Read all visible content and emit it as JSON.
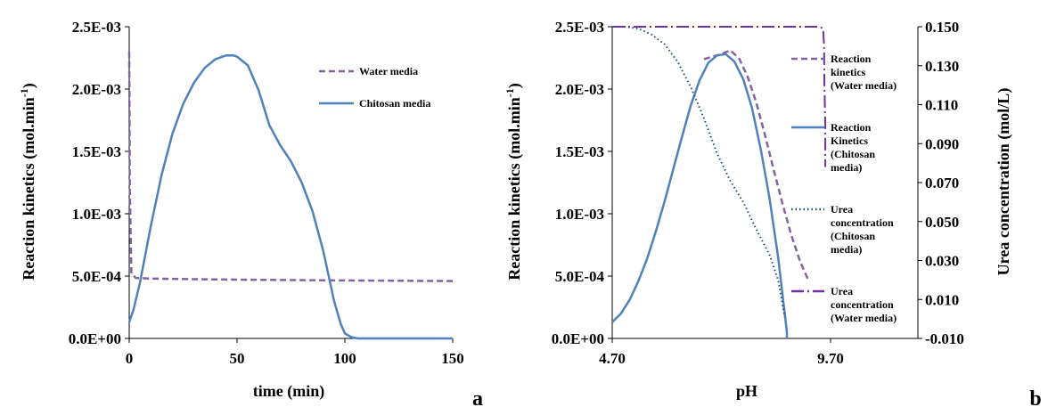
{
  "colors": {
    "water": "#8064A2",
    "chitosan": "#4F81BD",
    "urea_chitosan": "#1F4E79",
    "urea_water": "#7030A0"
  },
  "chart_data": [
    {
      "type": "line",
      "panel_label": "a",
      "xlabel": "time (min)",
      "ylabel": "Reaction kinetics (mol.min",
      "ylabel_sup": "-1",
      "ylabel_end": ")",
      "xlim": [
        0,
        150
      ],
      "ylim": [
        0,
        0.0025
      ],
      "xticks": [
        "0",
        "50",
        "100",
        "150"
      ],
      "xtick_values": [
        0,
        50,
        100,
        150
      ],
      "yticks": [
        "0.0E+00",
        "5.0E-04",
        "1.0E-03",
        "1.5E-03",
        "2.0E-03",
        "2.5E-03"
      ],
      "ytick_values": [
        0,
        0.0005,
        0.001,
        0.0015,
        0.002,
        0.0025
      ],
      "legend_position": "top-right",
      "series": [
        {
          "name": "Water media",
          "style": "dashed",
          "x": [
            0,
            0.3,
            1,
            3,
            10,
            30,
            60,
            100,
            150
          ],
          "y": [
            0.0023,
            0.0012,
            0.00052,
            0.000485,
            0.00048,
            0.000475,
            0.00047,
            0.000465,
            0.00046
          ]
        },
        {
          "name": "Chitosan media",
          "style": "solid",
          "x": [
            0,
            2,
            5,
            10,
            15,
            20,
            25,
            30,
            35,
            40,
            45,
            48,
            50,
            55,
            60,
            65,
            70,
            75,
            80,
            85,
            90,
            95,
            98,
            100,
            103,
            106,
            110,
            120,
            130,
            150
          ],
          "y": [
            0.00013,
            0.00023,
            0.00045,
            0.0009,
            0.00131,
            0.00164,
            0.00188,
            0.00205,
            0.00217,
            0.00224,
            0.00227,
            0.00227,
            0.00226,
            0.00219,
            0.00199,
            0.00171,
            0.00155,
            0.00142,
            0.00125,
            0.00102,
            0.0007,
            0.0003,
            0.00012,
            4e-05,
            1e-05,
            0,
            0,
            0,
            0,
            0
          ]
        }
      ]
    },
    {
      "type": "line",
      "panel_label": "b",
      "xlabel": "pH",
      "ylabel": "Reaction kinetics (mol.min",
      "ylabel_sup": "-1",
      "ylabel_end": ")",
      "y2label": "Urea concentration (mol/L)",
      "xlim": [
        4.7,
        11.7
      ],
      "ylim": [
        0,
        0.0025
      ],
      "y2lim": [
        -0.01,
        0.15
      ],
      "xticks": [
        "4.70",
        "9.70"
      ],
      "xtick_values": [
        4.7,
        9.7
      ],
      "yticks": [
        "0.0E+00",
        "5.0E-04",
        "1.0E-03",
        "1.5E-03",
        "2.0E-03",
        "2.5E-03"
      ],
      "ytick_values": [
        0,
        0.0005,
        0.001,
        0.0015,
        0.002,
        0.0025
      ],
      "y2ticks": [
        "-0.010",
        "0.010",
        "0.030",
        "0.050",
        "0.070",
        "0.090",
        "0.110",
        "0.130",
        "0.150"
      ],
      "y2tick_values": [
        -0.01,
        0.01,
        0.03,
        0.05,
        0.07,
        0.09,
        0.11,
        0.13,
        0.15
      ],
      "legend_position": "right",
      "series": [
        {
          "name": "Reaction kinetics (Water media)",
          "legend_lines": [
            "Reaction",
            "kinetics",
            "(Water media)"
          ],
          "axis": "left",
          "style": "dashed",
          "x": [
            6.8,
            7.0,
            7.2,
            7.4,
            7.6,
            7.8,
            8.0,
            8.2,
            8.4,
            8.6,
            8.8,
            9.0,
            9.2
          ],
          "y": [
            0.00224,
            0.00226,
            0.00228,
            0.00231,
            0.00225,
            0.0021,
            0.00189,
            0.00163,
            0.00135,
            0.00108,
            0.00083,
            0.00062,
            0.00046
          ]
        },
        {
          "name": "Reaction Kinetics (Chitosan media)",
          "legend_lines": [
            "Reaction",
            "Kinetics",
            "(Chitosan",
            "media)"
          ],
          "axis": "left",
          "style": "solid",
          "x": [
            4.7,
            4.9,
            5.1,
            5.3,
            5.5,
            5.7,
            5.9,
            6.1,
            6.3,
            6.5,
            6.7,
            6.9,
            7.1,
            7.3,
            7.5,
            7.7,
            7.9,
            8.1,
            8.3,
            8.5,
            8.6,
            8.65,
            8.7,
            8.7
          ],
          "y": [
            0.00013,
            0.0002,
            0.00031,
            0.00046,
            0.00064,
            0.00086,
            0.0011,
            0.00136,
            0.00162,
            0.00187,
            0.00207,
            0.00221,
            0.00227,
            0.00228,
            0.00222,
            0.00208,
            0.00185,
            0.00152,
            0.00113,
            0.00065,
            0.00035,
            0.0002,
            5e-05,
            0
          ]
        },
        {
          "name": "Urea concentration (Chitosan media)",
          "legend_lines": [
            "Urea",
            "concentration",
            "(Chitosan",
            "media)"
          ],
          "axis": "right",
          "style": "dotted",
          "x": [
            4.7,
            5.0,
            5.3,
            5.6,
            5.9,
            6.2,
            6.5,
            6.8,
            7.1,
            7.4,
            7.7,
            8.0,
            8.3,
            8.5,
            8.65
          ],
          "y": [
            0.15,
            0.15,
            0.149,
            0.146,
            0.141,
            0.132,
            0.119,
            0.103,
            0.085,
            0.071,
            0.06,
            0.046,
            0.033,
            0.02,
            0.001
          ]
        },
        {
          "name": "Urea concentration (Water media)",
          "legend_lines": [
            "Urea",
            "concentration",
            "(Water media)"
          ],
          "axis": "right",
          "style": "dash-dot",
          "x": [
            4.7,
            6.0,
            7.0,
            8.0,
            8.9,
            9.45,
            9.53,
            9.55,
            9.56,
            9.58,
            9.58
          ],
          "y": [
            0.15,
            0.15,
            0.15,
            0.15,
            0.15,
            0.15,
            0.149,
            0.14,
            0.12,
            0.1,
            0.078
          ]
        }
      ]
    }
  ]
}
